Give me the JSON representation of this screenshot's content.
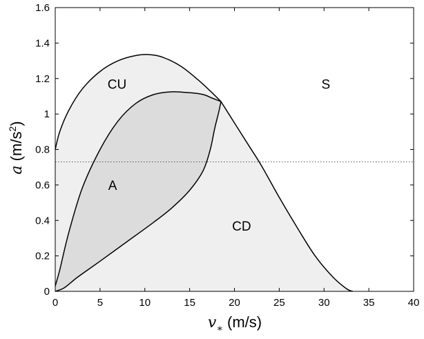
{
  "chart_data": {
    "type": "area",
    "xlabel": {
      "symbol": "v",
      "subscript": "∗",
      "unit": " (m/s)"
    },
    "ylabel": {
      "symbol": "a",
      "unit_prefix": " (m/s",
      "unit_sup": "2",
      "unit_suffix": ")"
    },
    "xlim": [
      0,
      40
    ],
    "ylim": [
      0,
      1.6
    ],
    "xticks": [
      0,
      5,
      10,
      15,
      20,
      25,
      30,
      35,
      40
    ],
    "yticks": [
      0,
      0.2,
      0.4,
      0.6,
      0.8,
      1,
      1.2,
      1.4,
      1.6
    ],
    "xtick_labels": [
      "0",
      "5",
      "10",
      "15",
      "20",
      "25",
      "30",
      "35",
      "40"
    ],
    "ytick_labels": [
      "0",
      "0.2",
      "0.4",
      "0.6",
      "0.8",
      "1",
      "1.2",
      "1.4",
      "1.6"
    ],
    "grid": false,
    "fill_colors": {
      "light": "#efefef",
      "dark": "#dcdcdc"
    },
    "reference_line": {
      "y": 0.73,
      "style": "dotted"
    },
    "curves": {
      "outer_upper": [
        [
          0,
          0.8
        ],
        [
          0.5,
          0.9
        ],
        [
          1.5,
          1.02
        ],
        [
          3,
          1.14
        ],
        [
          5,
          1.24
        ],
        [
          7,
          1.3
        ],
        [
          9,
          1.33
        ],
        [
          10.5,
          1.335
        ],
        [
          12,
          1.32
        ],
        [
          14,
          1.27
        ],
        [
          16,
          1.19
        ],
        [
          17.5,
          1.12
        ],
        [
          18.5,
          1.07
        ]
      ],
      "upper_right": [
        [
          18.5,
          1.07
        ],
        [
          20,
          0.95
        ],
        [
          21.5,
          0.83
        ],
        [
          23,
          0.71
        ],
        [
          25,
          0.53
        ],
        [
          27,
          0.36
        ],
        [
          29,
          0.2
        ],
        [
          31,
          0.08
        ],
        [
          32.5,
          0.015
        ],
        [
          33.2,
          0
        ]
      ],
      "inner_upper": [
        [
          0,
          0.03
        ],
        [
          0.5,
          0.12
        ],
        [
          1.5,
          0.33
        ],
        [
          3,
          0.58
        ],
        [
          5,
          0.8
        ],
        [
          7,
          0.96
        ],
        [
          9,
          1.06
        ],
        [
          11,
          1.11
        ],
        [
          13,
          1.125
        ],
        [
          15,
          1.12
        ],
        [
          16.5,
          1.11
        ],
        [
          17.5,
          1.09
        ],
        [
          18.5,
          1.07
        ]
      ],
      "inner_lower": [
        [
          0,
          0
        ],
        [
          1,
          0.02
        ],
        [
          2.5,
          0.08
        ],
        [
          5,
          0.17
        ],
        [
          8,
          0.28
        ],
        [
          11,
          0.39
        ],
        [
          13,
          0.47
        ],
        [
          15,
          0.57
        ],
        [
          16.5,
          0.68
        ],
        [
          17.3,
          0.8
        ],
        [
          17.8,
          0.92
        ],
        [
          18.2,
          1.0
        ],
        [
          18.5,
          1.07
        ]
      ]
    },
    "regions": [
      {
        "label": "CU",
        "x": 6.9,
        "y": 1.17
      },
      {
        "label": "S",
        "x": 30.2,
        "y": 1.17
      },
      {
        "label": "A",
        "x": 6.4,
        "y": 0.6
      },
      {
        "label": "CD",
        "x": 20.8,
        "y": 0.37
      }
    ]
  }
}
